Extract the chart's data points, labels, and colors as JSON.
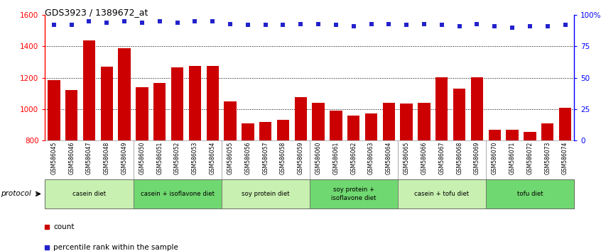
{
  "title": "GDS3923 / 1389672_at",
  "samples": [
    "GSM586045",
    "GSM586046",
    "GSM586047",
    "GSM586048",
    "GSM586049",
    "GSM586050",
    "GSM586051",
    "GSM586052",
    "GSM586053",
    "GSM586054",
    "GSM586055",
    "GSM586056",
    "GSM586057",
    "GSM586058",
    "GSM586059",
    "GSM586060",
    "GSM586061",
    "GSM586062",
    "GSM586063",
    "GSM586064",
    "GSM586065",
    "GSM586066",
    "GSM586067",
    "GSM586068",
    "GSM586069",
    "GSM586070",
    "GSM586071",
    "GSM586072",
    "GSM586073",
    "GSM586074"
  ],
  "counts": [
    1185,
    1120,
    1440,
    1270,
    1390,
    1140,
    1165,
    1265,
    1275,
    1275,
    1050,
    910,
    920,
    930,
    1075,
    1040,
    990,
    960,
    975,
    1040,
    1035,
    1040,
    1205,
    1130,
    1205,
    870,
    870,
    855,
    910,
    1010
  ],
  "percentiles": [
    92,
    92,
    95,
    94,
    95,
    94,
    95,
    94,
    95,
    95,
    93,
    92,
    92,
    92,
    93,
    93,
    92,
    91,
    93,
    93,
    92,
    93,
    92,
    91,
    93,
    91,
    90,
    91,
    91,
    92
  ],
  "ylim_left": [
    800,
    1600
  ],
  "yticks_left": [
    800,
    1000,
    1200,
    1400,
    1600
  ],
  "ylim_right": [
    0,
    100
  ],
  "yticks_right": [
    0,
    25,
    50,
    75,
    100
  ],
  "ytick_right_labels": [
    "0",
    "25",
    "50",
    "75",
    "100%"
  ],
  "bar_color": "#CC0000",
  "dot_color": "#2222CC",
  "groups": [
    {
      "label": "casein diet",
      "start": 0,
      "end": 4,
      "color": "#c8f0b0"
    },
    {
      "label": "casein + isoflavone diet",
      "start": 5,
      "end": 9,
      "color": "#70d870"
    },
    {
      "label": "soy protein diet",
      "start": 10,
      "end": 14,
      "color": "#c8f0b0"
    },
    {
      "label": "soy protein +\nisoflavone diet",
      "start": 15,
      "end": 19,
      "color": "#70d870"
    },
    {
      "label": "casein + tofu diet",
      "start": 20,
      "end": 24,
      "color": "#c8f0b0"
    },
    {
      "label": "tofu diet",
      "start": 25,
      "end": 29,
      "color": "#70d870"
    }
  ],
  "xtick_bg": "#d8d8d8",
  "grid_dotted_color": "black",
  "grid_dotted_lw": 0.7
}
